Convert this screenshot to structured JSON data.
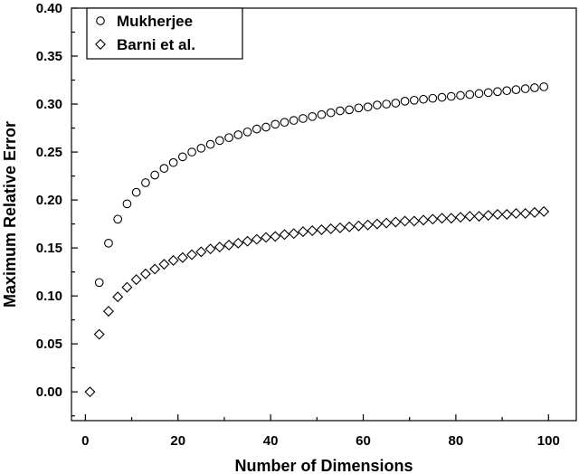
{
  "chart_data": {
    "type": "scatter",
    "title": "",
    "xlabel": "Number of Dimensions",
    "ylabel": "Maximum Relative Error",
    "xlim": [
      -3,
      106
    ],
    "ylim": [
      -0.03,
      0.4
    ],
    "xticks": [
      0,
      20,
      40,
      60,
      80,
      100
    ],
    "xtick_labels": [
      "0",
      "20",
      "40",
      "60",
      "80",
      "100"
    ],
    "yticks": [
      0.0,
      0.05,
      0.1,
      0.15,
      0.2,
      0.25,
      0.3,
      0.35,
      0.4
    ],
    "ytick_labels": [
      "0.00",
      "0.05",
      "0.10",
      "0.15",
      "0.20",
      "0.25",
      "0.30",
      "0.35",
      "0.40"
    ],
    "grid": false,
    "legend_position": "top-left",
    "x": [
      1,
      3,
      5,
      7,
      9,
      11,
      13,
      15,
      17,
      19,
      21,
      23,
      25,
      27,
      29,
      31,
      33,
      35,
      37,
      39,
      41,
      43,
      45,
      47,
      49,
      51,
      53,
      55,
      57,
      59,
      61,
      63,
      65,
      67,
      69,
      71,
      73,
      75,
      77,
      79,
      81,
      83,
      85,
      87,
      89,
      91,
      93,
      95,
      97,
      99
    ],
    "series": [
      {
        "name": "Mukherjee",
        "marker": "circle",
        "values": [
          null,
          0.114,
          0.155,
          0.18,
          0.196,
          0.208,
          0.218,
          0.226,
          0.233,
          0.239,
          0.245,
          0.25,
          0.254,
          0.258,
          0.262,
          0.265,
          0.268,
          0.271,
          0.274,
          0.276,
          0.279,
          0.281,
          0.283,
          0.285,
          0.287,
          0.289,
          0.291,
          0.293,
          0.294,
          0.296,
          0.297,
          0.299,
          0.3,
          0.301,
          0.303,
          0.304,
          0.305,
          0.306,
          0.307,
          0.308,
          0.309,
          0.31,
          0.311,
          0.312,
          0.313,
          0.314,
          0.315,
          0.316,
          0.317,
          0.318
        ]
      },
      {
        "name": "Barni et al.",
        "marker": "diamond",
        "values": [
          0.0,
          0.06,
          0.084,
          0.099,
          0.109,
          0.117,
          0.123,
          0.128,
          0.133,
          0.137,
          0.14,
          0.143,
          0.146,
          0.149,
          0.151,
          0.153,
          0.155,
          0.157,
          0.159,
          0.161,
          0.162,
          0.164,
          0.165,
          0.167,
          0.168,
          0.169,
          0.17,
          0.171,
          0.172,
          0.173,
          0.174,
          0.175,
          0.176,
          0.177,
          0.178,
          0.178,
          0.179,
          0.18,
          0.181,
          0.181,
          0.182,
          0.183,
          0.183,
          0.184,
          0.185,
          0.185,
          0.186,
          0.186,
          0.187,
          0.188
        ]
      }
    ]
  }
}
